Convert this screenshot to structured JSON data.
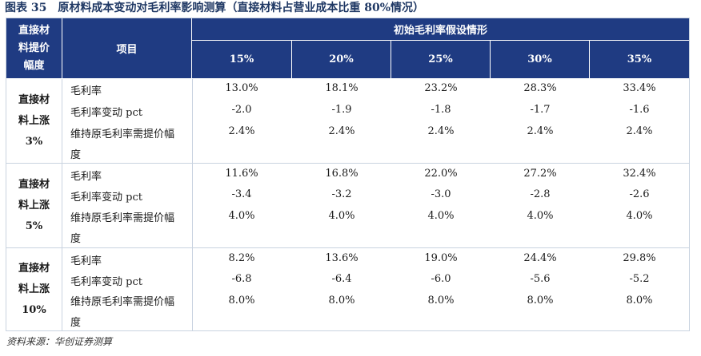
{
  "title": {
    "label": "图表 35",
    "text": "原材料成本变动对毛利率影响测算（直接材料占营业成本比重 80%情况）"
  },
  "header": {
    "col0": "直接材料提价幅度",
    "col0_lines": [
      "直接材",
      "料提价",
      "幅度"
    ],
    "item_col": "项目",
    "group": "初始毛利率假设情形",
    "scenarios": [
      "15%",
      "20%",
      "25%",
      "30%",
      "35%"
    ]
  },
  "sections": [
    {
      "label_lines": [
        "直接材",
        "料上涨",
        "3%"
      ],
      "rows": [
        {
          "item": "毛利率",
          "values": [
            "13.0%",
            "18.1%",
            "23.2%",
            "28.3%",
            "33.4%"
          ]
        },
        {
          "item": "毛利率变动 pct",
          "values": [
            "-2.0",
            "-1.9",
            "-1.8",
            "-1.7",
            "-1.6"
          ]
        },
        {
          "item_lines": [
            "维持原毛利率需提价幅",
            "度"
          ],
          "values": [
            "2.4%",
            "2.4%",
            "2.4%",
            "2.4%",
            "2.4%"
          ]
        }
      ]
    },
    {
      "label_lines": [
        "直接材",
        "料上涨",
        "5%"
      ],
      "rows": [
        {
          "item": "毛利率",
          "values": [
            "11.6%",
            "16.8%",
            "22.0%",
            "27.2%",
            "32.4%"
          ]
        },
        {
          "item": "毛利率变动 pct",
          "values": [
            "-3.4",
            "-3.2",
            "-3.0",
            "-2.8",
            "-2.6"
          ]
        },
        {
          "item_lines": [
            "维持原毛利率需提价幅",
            "度"
          ],
          "values": [
            "4.0%",
            "4.0%",
            "4.0%",
            "4.0%",
            "4.0%"
          ]
        }
      ]
    },
    {
      "label_lines": [
        "直接材",
        "料上涨",
        "10%"
      ],
      "rows": [
        {
          "item": "毛利率",
          "values": [
            "8.2%",
            "13.6%",
            "19.0%",
            "24.4%",
            "29.8%"
          ]
        },
        {
          "item": "毛利率变动 pct",
          "values": [
            "-6.8",
            "-6.4",
            "-6.0",
            "-5.6",
            "-5.2"
          ]
        },
        {
          "item_lines": [
            "维持原毛利率需提价幅",
            "度"
          ],
          "values": [
            "8.0%",
            "8.0%",
            "8.0%",
            "8.0%",
            "8.0%"
          ]
        }
      ]
    }
  ],
  "source": "资料来源：华创证券测算"
}
